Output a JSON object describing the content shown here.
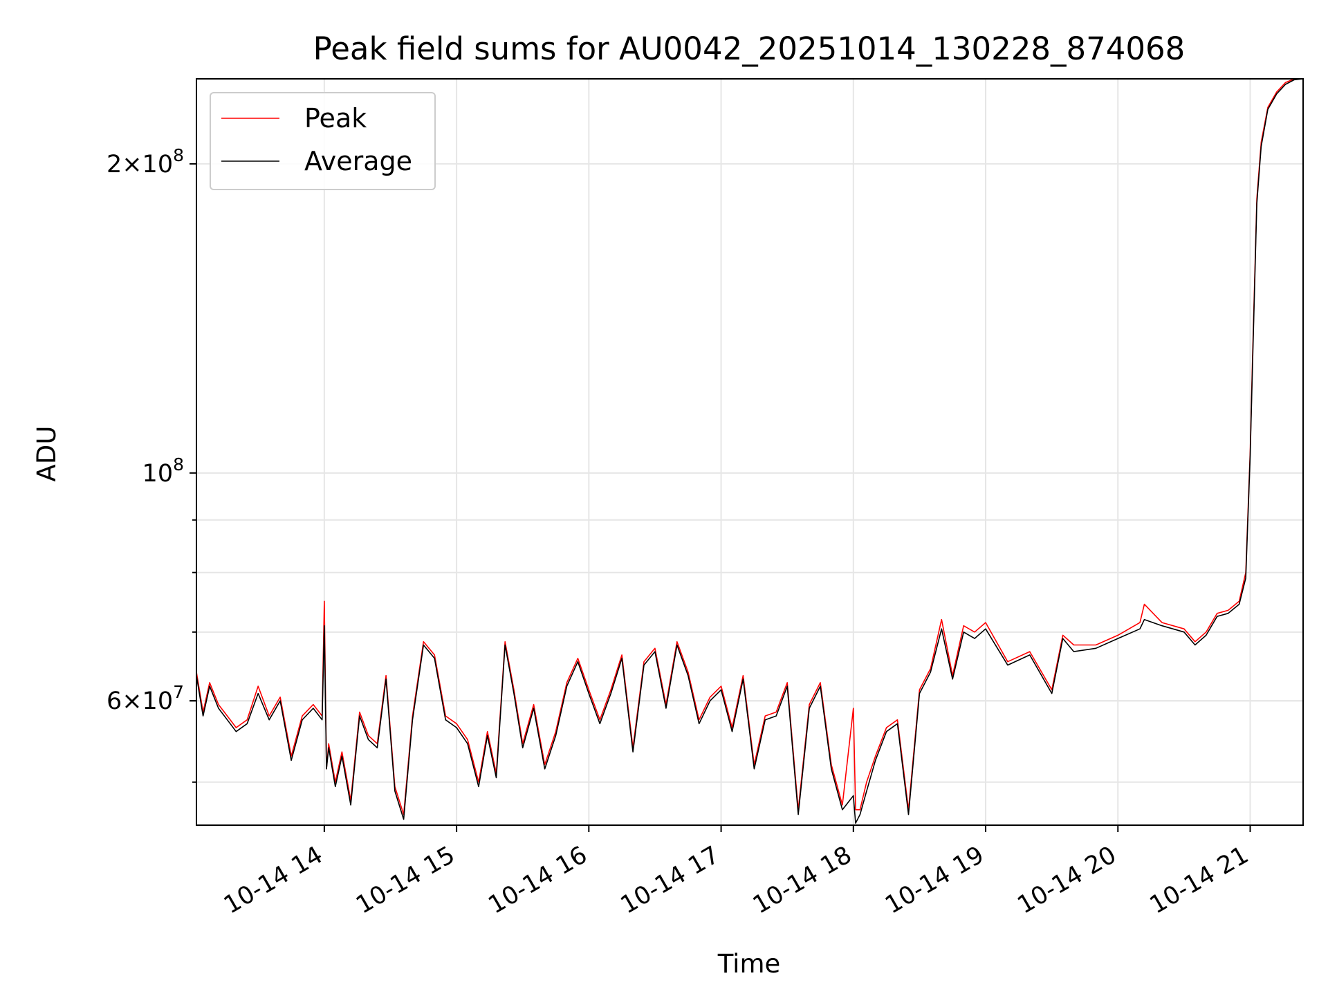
{
  "chart_data": {
    "type": "line",
    "title": "Peak field sums for AU0042_20251014_130228_874068",
    "xlabel": "Time",
    "ylabel": "ADU",
    "y_scale": "log",
    "grid": true,
    "legend_position": "top-left",
    "xlim": [
      "2025-10-14 13:02",
      "2025-10-14 21:24"
    ],
    "ylim": [
      45400000,
      242000000
    ],
    "x_ticks": [
      "10-14 14",
      "10-14 15",
      "10-14 16",
      "10-14 17",
      "10-14 18",
      "10-14 19",
      "10-14 20",
      "10-14 21"
    ],
    "x_tick_times": [
      "2025-10-14 14:00",
      "2025-10-14 15:00",
      "2025-10-14 16:00",
      "2025-10-14 17:00",
      "2025-10-14 18:00",
      "2025-10-14 19:00",
      "2025-10-14 20:00",
      "2025-10-14 21:00"
    ],
    "y_ticks": [
      {
        "value": 60000000,
        "mantissa": "6",
        "exp": "7"
      },
      {
        "value": 100000000,
        "mantissa": "",
        "exp": "8"
      },
      {
        "value": 200000000,
        "mantissa": "2",
        "exp": "8"
      }
    ],
    "colors": {
      "Peak": "#ff0000",
      "Average": "#000000"
    },
    "series": [
      {
        "name": "Peak",
        "x": [
          "2025-10-14 13:02",
          "2025-10-14 13:05",
          "2025-10-14 13:08",
          "2025-10-14 13:12",
          "2025-10-14 13:16",
          "2025-10-14 13:20",
          "2025-10-14 13:25",
          "2025-10-14 13:30",
          "2025-10-14 13:35",
          "2025-10-14 13:40",
          "2025-10-14 13:45",
          "2025-10-14 13:50",
          "2025-10-14 13:55",
          "2025-10-14 13:59",
          "2025-10-14 14:00",
          "2025-10-14 14:01",
          "2025-10-14 14:02",
          "2025-10-14 14:05",
          "2025-10-14 14:08",
          "2025-10-14 14:12",
          "2025-10-14 14:16",
          "2025-10-14 14:20",
          "2025-10-14 14:24",
          "2025-10-14 14:28",
          "2025-10-14 14:32",
          "2025-10-14 14:36",
          "2025-10-14 14:40",
          "2025-10-14 14:45",
          "2025-10-14 14:50",
          "2025-10-14 14:55",
          "2025-10-14 15:00",
          "2025-10-14 15:05",
          "2025-10-14 15:10",
          "2025-10-14 15:14",
          "2025-10-14 15:18",
          "2025-10-14 15:22",
          "2025-10-14 15:26",
          "2025-10-14 15:30",
          "2025-10-14 15:35",
          "2025-10-14 15:40",
          "2025-10-14 15:45",
          "2025-10-14 15:50",
          "2025-10-14 15:55",
          "2025-10-14 16:00",
          "2025-10-14 16:05",
          "2025-10-14 16:10",
          "2025-10-14 16:15",
          "2025-10-14 16:20",
          "2025-10-14 16:25",
          "2025-10-14 16:30",
          "2025-10-14 16:35",
          "2025-10-14 16:40",
          "2025-10-14 16:45",
          "2025-10-14 16:50",
          "2025-10-14 16:55",
          "2025-10-14 17:00",
          "2025-10-14 17:05",
          "2025-10-14 17:10",
          "2025-10-14 17:15",
          "2025-10-14 17:20",
          "2025-10-14 17:25",
          "2025-10-14 17:30",
          "2025-10-14 17:35",
          "2025-10-14 17:40",
          "2025-10-14 17:45",
          "2025-10-14 17:50",
          "2025-10-14 17:55",
          "2025-10-14 18:00",
          "2025-10-14 18:01",
          "2025-10-14 18:03",
          "2025-10-14 18:06",
          "2025-10-14 18:10",
          "2025-10-14 18:15",
          "2025-10-14 18:20",
          "2025-10-14 18:25",
          "2025-10-14 18:30",
          "2025-10-14 18:35",
          "2025-10-14 18:40",
          "2025-10-14 18:45",
          "2025-10-14 18:50",
          "2025-10-14 18:55",
          "2025-10-14 19:00",
          "2025-10-14 19:10",
          "2025-10-14 19:20",
          "2025-10-14 19:30",
          "2025-10-14 19:35",
          "2025-10-14 19:40",
          "2025-10-14 19:50",
          "2025-10-14 20:00",
          "2025-10-14 20:10",
          "2025-10-14 20:12",
          "2025-10-14 20:20",
          "2025-10-14 20:30",
          "2025-10-14 20:35",
          "2025-10-14 20:40",
          "2025-10-14 20:45",
          "2025-10-14 20:50",
          "2025-10-14 20:55",
          "2025-10-14 20:58",
          "2025-10-14 21:00",
          "2025-10-14 21:01",
          "2025-10-14 21:03",
          "2025-10-14 21:05",
          "2025-10-14 21:08",
          "2025-10-14 21:12",
          "2025-10-14 21:16",
          "2025-10-14 21:20",
          "2025-10-14 21:24"
        ],
        "values": [
          64000000,
          58500000,
          62500000,
          59500000,
          58000000,
          56500000,
          57500000,
          62000000,
          58000000,
          60500000,
          53000000,
          58000000,
          59500000,
          58000000,
          75000000,
          51500000,
          54500000,
          50000000,
          53500000,
          48000000,
          58500000,
          55500000,
          54500000,
          63500000,
          49500000,
          46500000,
          58000000,
          68500000,
          66500000,
          58000000,
          57000000,
          55000000,
          50000000,
          56000000,
          51000000,
          68500000,
          61500000,
          54500000,
          59500000,
          52000000,
          56000000,
          62500000,
          66000000,
          61500000,
          57500000,
          61500000,
          66500000,
          54000000,
          65500000,
          67500000,
          59500000,
          68500000,
          64000000,
          57500000,
          60500000,
          62000000,
          56500000,
          63500000,
          52000000,
          58000000,
          58500000,
          62500000,
          47000000,
          59500000,
          62500000,
          52000000,
          47500000,
          59000000,
          47000000,
          47000000,
          50000000,
          53000000,
          56500000,
          57500000,
          47000000,
          61500000,
          64500000,
          72000000,
          63500000,
          71000000,
          70000000,
          71500000,
          65500000,
          67000000,
          61500000,
          69500000,
          68000000,
          68000000,
          69500000,
          71500000,
          74500000,
          71500000,
          70500000,
          68500000,
          70000000,
          73000000,
          73500000,
          75000000,
          80000000,
          105000000,
          128000000,
          185000000,
          210000000,
          227000000,
          235000000,
          240000000,
          242000000,
          242000000
        ]
      },
      {
        "name": "Average",
        "x": [
          "2025-10-14 13:02",
          "2025-10-14 13:05",
          "2025-10-14 13:08",
          "2025-10-14 13:12",
          "2025-10-14 13:16",
          "2025-10-14 13:20",
          "2025-10-14 13:25",
          "2025-10-14 13:30",
          "2025-10-14 13:35",
          "2025-10-14 13:40",
          "2025-10-14 13:45",
          "2025-10-14 13:50",
          "2025-10-14 13:55",
          "2025-10-14 13:59",
          "2025-10-14 14:00",
          "2025-10-14 14:01",
          "2025-10-14 14:02",
          "2025-10-14 14:05",
          "2025-10-14 14:08",
          "2025-10-14 14:12",
          "2025-10-14 14:16",
          "2025-10-14 14:20",
          "2025-10-14 14:24",
          "2025-10-14 14:28",
          "2025-10-14 14:32",
          "2025-10-14 14:36",
          "2025-10-14 14:40",
          "2025-10-14 14:45",
          "2025-10-14 14:50",
          "2025-10-14 14:55",
          "2025-10-14 15:00",
          "2025-10-14 15:05",
          "2025-10-14 15:10",
          "2025-10-14 15:14",
          "2025-10-14 15:18",
          "2025-10-14 15:22",
          "2025-10-14 15:26",
          "2025-10-14 15:30",
          "2025-10-14 15:35",
          "2025-10-14 15:40",
          "2025-10-14 15:45",
          "2025-10-14 15:50",
          "2025-10-14 15:55",
          "2025-10-14 16:00",
          "2025-10-14 16:05",
          "2025-10-14 16:10",
          "2025-10-14 16:15",
          "2025-10-14 16:20",
          "2025-10-14 16:25",
          "2025-10-14 16:30",
          "2025-10-14 16:35",
          "2025-10-14 16:40",
          "2025-10-14 16:45",
          "2025-10-14 16:50",
          "2025-10-14 16:55",
          "2025-10-14 17:00",
          "2025-10-14 17:05",
          "2025-10-14 17:10",
          "2025-10-14 17:15",
          "2025-10-14 17:20",
          "2025-10-14 17:25",
          "2025-10-14 17:30",
          "2025-10-14 17:35",
          "2025-10-14 17:40",
          "2025-10-14 17:45",
          "2025-10-14 17:50",
          "2025-10-14 17:55",
          "2025-10-14 18:00",
          "2025-10-14 18:01",
          "2025-10-14 18:03",
          "2025-10-14 18:06",
          "2025-10-14 18:10",
          "2025-10-14 18:15",
          "2025-10-14 18:20",
          "2025-10-14 18:25",
          "2025-10-14 18:30",
          "2025-10-14 18:35",
          "2025-10-14 18:40",
          "2025-10-14 18:45",
          "2025-10-14 18:50",
          "2025-10-14 18:55",
          "2025-10-14 19:00",
          "2025-10-14 19:10",
          "2025-10-14 19:20",
          "2025-10-14 19:30",
          "2025-10-14 19:35",
          "2025-10-14 19:40",
          "2025-10-14 19:50",
          "2025-10-14 20:00",
          "2025-10-14 20:10",
          "2025-10-14 20:12",
          "2025-10-14 20:20",
          "2025-10-14 20:30",
          "2025-10-14 20:35",
          "2025-10-14 20:40",
          "2025-10-14 20:45",
          "2025-10-14 20:50",
          "2025-10-14 20:55",
          "2025-10-14 20:58",
          "2025-10-14 21:00",
          "2025-10-14 21:01",
          "2025-10-14 21:03",
          "2025-10-14 21:05",
          "2025-10-14 21:08",
          "2025-10-14 21:12",
          "2025-10-14 21:16",
          "2025-10-14 21:20",
          "2025-10-14 21:24"
        ],
        "values": [
          63500000,
          58000000,
          62000000,
          59000000,
          57500000,
          56000000,
          57000000,
          61000000,
          57500000,
          60000000,
          52500000,
          57500000,
          59000000,
          57500000,
          71000000,
          51500000,
          54000000,
          49500000,
          53000000,
          47500000,
          58000000,
          55000000,
          54000000,
          63000000,
          49000000,
          46000000,
          57500000,
          68000000,
          66000000,
          57500000,
          56500000,
          54500000,
          49500000,
          55500000,
          50500000,
          68000000,
          61000000,
          54000000,
          59000000,
          51500000,
          55500000,
          62000000,
          65500000,
          61000000,
          57000000,
          61000000,
          66000000,
          53500000,
          65000000,
          67000000,
          59000000,
          68000000,
          63500000,
          57000000,
          60000000,
          61500000,
          56000000,
          63000000,
          51500000,
          57500000,
          58000000,
          62000000,
          46500000,
          59000000,
          62000000,
          51500000,
          47000000,
          48500000,
          45600000,
          46500000,
          49000000,
          52500000,
          56000000,
          57000000,
          46500000,
          61000000,
          64000000,
          70500000,
          63000000,
          70000000,
          69000000,
          70500000,
          65000000,
          66500000,
          61000000,
          69000000,
          67000000,
          67500000,
          69000000,
          70500000,
          72000000,
          71000000,
          70000000,
          68000000,
          69500000,
          72500000,
          73000000,
          74500000,
          79000000,
          104000000,
          126000000,
          183000000,
          208000000,
          226000000,
          234000000,
          239000000,
          241500000,
          242000000
        ]
      }
    ]
  }
}
